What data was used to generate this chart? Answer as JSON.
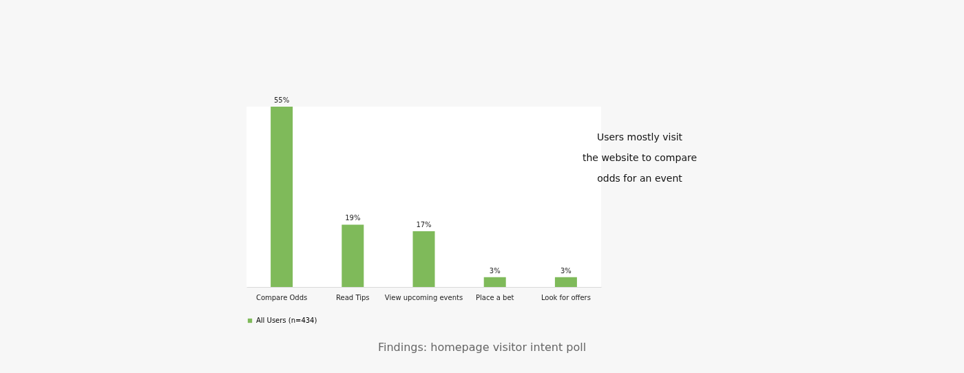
{
  "chart_data": {
    "type": "bar",
    "categories": [
      "Compare Odds",
      "Read Tips",
      "View upcoming events",
      "Place a bet",
      "Look for offers"
    ],
    "series": [
      {
        "name": "All Users (n=434)",
        "color": "#7fba5a",
        "values": [
          55,
          19,
          17,
          3,
          3
        ],
        "value_labels": [
          "55%",
          "19%",
          "17%",
          "3%",
          "3%"
        ]
      }
    ],
    "legend": "bottom",
    "grid": false,
    "annotations": [
      "Users mostly visit\nthe website to compare\nodds for an event",
      "Findings: homepage visitor intent poll"
    ]
  }
}
